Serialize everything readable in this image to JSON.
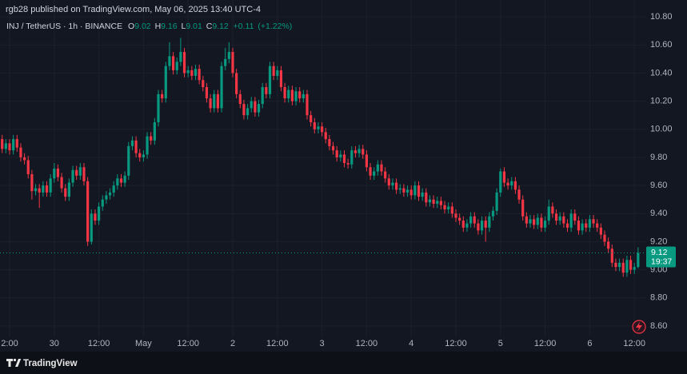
{
  "chart_data": {
    "type": "candlestick",
    "title": "rgb28 published on TradingView.com, May 06, 2025 13:40 UTC-4",
    "legend": {
      "symbol": "INJ / TetherUS · 1h · BINANCE",
      "letters": [
        "O",
        "H",
        "L",
        "C"
      ],
      "open": 9.02,
      "high": 9.16,
      "low": 9.01,
      "close": 9.12,
      "change": {
        "value": 0.11,
        "label": "+0.11"
      },
      "change_pct": {
        "value": 1.22,
        "label": "(+1.22%)"
      }
    },
    "brand": "TradingView",
    "up_color": "#089981",
    "down_color": "#f23645",
    "last_price": 9.12,
    "countdown": "19:37",
    "grid": true,
    "ylim": [
      8.52,
      10.92
    ],
    "yticks": [
      {
        "value": 8.6,
        "label": "8.60"
      },
      {
        "value": 8.8,
        "label": "8.80"
      },
      {
        "value": 9,
        "label": "9.00"
      },
      {
        "value": 9.2,
        "label": "9.20"
      },
      {
        "value": 9.4,
        "label": "9.40"
      },
      {
        "value": 9.6,
        "label": "9.60"
      },
      {
        "value": 9.8,
        "label": "9.80"
      },
      {
        "value": 10,
        "label": "10.00"
      },
      {
        "value": 10.2,
        "label": "10.20"
      },
      {
        "value": 10.4,
        "label": "10.40"
      },
      {
        "value": 10.6,
        "label": "10.60"
      },
      {
        "value": 10.8,
        "label": "10.80"
      }
    ],
    "categories": [
      null,
      null,
      "2:00",
      null,
      null,
      null,
      null,
      null,
      null,
      null,
      null,
      null,
      null,
      null,
      "30",
      null,
      null,
      null,
      null,
      null,
      null,
      null,
      null,
      null,
      null,
      null,
      "12:00",
      null,
      null,
      null,
      null,
      null,
      null,
      null,
      null,
      null,
      null,
      null,
      "May",
      null,
      null,
      null,
      null,
      null,
      null,
      null,
      null,
      null,
      null,
      null,
      "12:00",
      null,
      null,
      null,
      null,
      null,
      null,
      null,
      null,
      null,
      null,
      null,
      "2",
      null,
      null,
      null,
      null,
      null,
      null,
      null,
      null,
      null,
      null,
      null,
      "12:00",
      null,
      null,
      null,
      null,
      null,
      null,
      null,
      null,
      null,
      null,
      null,
      "3",
      null,
      null,
      null,
      null,
      null,
      null,
      null,
      null,
      null,
      null,
      null,
      "12:00",
      null,
      null,
      null,
      null,
      null,
      null,
      null,
      null,
      null,
      null,
      null,
      "4",
      null,
      null,
      null,
      null,
      null,
      null,
      null,
      null,
      null,
      null,
      null,
      "12:00",
      null,
      null,
      null,
      null,
      null,
      null,
      null,
      null,
      null,
      null,
      null,
      "5",
      null,
      null,
      null,
      null,
      null,
      null,
      null,
      null,
      null,
      null,
      null,
      "12:00",
      null,
      null,
      null,
      null,
      null,
      null,
      null,
      null,
      null,
      null,
      null,
      "6",
      null,
      null,
      null,
      null,
      null,
      null,
      null,
      null,
      null,
      null,
      null,
      "12:00",
      null
    ],
    "open": [
      9.93,
      9.86,
      9.9,
      9.85,
      9.93,
      9.87,
      9.8,
      9.78,
      9.68,
      9.56,
      9.58,
      9.55,
      9.6,
      9.55,
      9.65,
      9.72,
      9.66,
      9.58,
      9.52,
      9.62,
      9.71,
      9.67,
      9.73,
      9.63,
      9.2,
      9.4,
      9.35,
      9.45,
      9.5,
      9.53,
      9.55,
      9.6,
      9.65,
      9.62,
      9.67,
      9.88,
      9.92,
      9.83,
      9.8,
      9.82,
      9.95,
      9.92,
      10.05,
      10.25,
      10.22,
      10.45,
      10.52,
      10.42,
      10.48,
      10.55,
      10.4,
      10.42,
      10.38,
      10.43,
      10.35,
      10.3,
      10.22,
      10.15,
      10.25,
      10.15,
      10.45,
      10.5,
      10.55,
      10.4,
      10.25,
      10.18,
      10.1,
      10.15,
      10.2,
      10.12,
      10.18,
      10.3,
      10.25,
      10.45,
      10.38,
      10.42,
      10.3,
      10.22,
      10.28,
      10.2,
      10.27,
      10.22,
      10.25,
      10.1,
      10.05,
      10.0,
      10.02,
      9.98,
      9.93,
      9.88,
      9.85,
      9.8,
      9.82,
      9.76,
      9.75,
      9.85,
      9.83,
      9.86,
      9.82,
      9.73,
      9.67,
      9.7,
      9.75,
      9.7,
      9.65,
      9.6,
      9.62,
      9.57,
      9.58,
      9.55,
      9.57,
      9.53,
      9.6,
      9.52,
      9.55,
      9.48,
      9.5,
      9.47,
      9.49,
      9.46,
      9.43,
      9.45,
      9.4,
      9.37,
      9.35,
      9.3,
      9.33,
      9.38,
      9.33,
      9.28,
      9.35,
      9.3,
      9.38,
      9.42,
      9.55,
      9.7,
      9.62,
      9.6,
      9.63,
      9.57,
      9.5,
      9.38,
      9.33,
      9.36,
      9.32,
      9.37,
      9.3,
      9.35,
      9.45,
      9.4,
      9.35,
      9.38,
      9.33,
      9.3,
      9.4,
      9.35,
      9.28,
      9.33,
      9.3,
      9.36,
      9.33,
      9.3,
      9.25,
      9.2,
      9.15,
      9.05,
      9.02,
      9.05,
      8.98,
      9.07,
      9.0,
      9.02
    ],
    "high": [
      9.96,
      9.93,
      9.93,
      9.96,
      9.96,
      9.9,
      9.83,
      9.81,
      9.71,
      9.61,
      9.61,
      9.63,
      9.63,
      9.68,
      9.76,
      9.75,
      9.69,
      9.61,
      9.65,
      9.74,
      9.74,
      9.76,
      9.76,
      9.66,
      9.43,
      9.43,
      9.48,
      9.53,
      9.56,
      9.58,
      9.63,
      9.68,
      9.68,
      9.7,
      9.91,
      9.95,
      9.95,
      9.86,
      9.85,
      9.98,
      9.98,
      10.08,
      10.28,
      10.28,
      10.48,
      10.62,
      10.55,
      10.51,
      10.65,
      10.58,
      10.45,
      10.45,
      10.46,
      10.46,
      10.38,
      10.33,
      10.25,
      10.28,
      10.28,
      10.48,
      10.58,
      10.62,
      10.58,
      10.43,
      10.28,
      10.21,
      10.18,
      10.23,
      10.23,
      10.21,
      10.33,
      10.33,
      10.48,
      10.48,
      10.45,
      10.45,
      10.33,
      10.31,
      10.31,
      10.3,
      10.3,
      10.28,
      10.28,
      10.13,
      10.08,
      10.05,
      10.05,
      10.01,
      9.96,
      9.91,
      9.88,
      9.85,
      9.85,
      9.79,
      9.88,
      9.88,
      9.89,
      9.89,
      9.85,
      9.76,
      9.73,
      9.78,
      9.78,
      9.73,
      9.68,
      9.65,
      9.65,
      9.61,
      9.61,
      9.6,
      9.6,
      9.63,
      9.63,
      9.58,
      9.58,
      9.53,
      9.53,
      9.52,
      9.52,
      9.49,
      9.48,
      9.48,
      9.43,
      9.4,
      9.38,
      9.36,
      9.41,
      9.41,
      9.36,
      9.38,
      9.38,
      9.41,
      9.45,
      9.58,
      9.72,
      9.73,
      9.65,
      9.66,
      9.66,
      9.6,
      9.53,
      9.41,
      9.39,
      9.39,
      9.4,
      9.4,
      9.38,
      9.5,
      9.48,
      9.43,
      9.41,
      9.41,
      9.36,
      9.43,
      9.43,
      9.38,
      9.36,
      9.36,
      9.39,
      9.39,
      9.36,
      9.33,
      9.28,
      9.23,
      9.18,
      9.08,
      9.08,
      9.08,
      9.1,
      9.1,
      9.05,
      9.16
    ],
    "low": [
      9.83,
      9.83,
      9.82,
      9.82,
      9.84,
      9.77,
      9.75,
      9.65,
      9.5,
      9.53,
      9.44,
      9.52,
      9.52,
      9.52,
      9.62,
      9.63,
      9.55,
      9.49,
      9.49,
      9.59,
      9.64,
      9.64,
      9.6,
      9.17,
      9.18,
      9.32,
      9.32,
      9.42,
      9.47,
      9.5,
      9.52,
      9.57,
      9.59,
      9.59,
      9.64,
      9.85,
      9.8,
      9.77,
      9.77,
      9.79,
      9.89,
      9.89,
      10.02,
      10.19,
      10.19,
      10.42,
      10.39,
      10.39,
      10.45,
      10.37,
      10.37,
      10.35,
      10.35,
      10.32,
      10.27,
      10.19,
      10.12,
      10.12,
      10.12,
      10.12,
      10.42,
      10.47,
      10.37,
      10.22,
      10.15,
      10.07,
      10.07,
      10.12,
      10.09,
      10.09,
      10.15,
      10.22,
      10.22,
      10.35,
      10.35,
      10.27,
      10.19,
      10.19,
      10.17,
      10.17,
      10.19,
      10.19,
      10.07,
      10.02,
      9.97,
      9.97,
      9.95,
      9.9,
      9.85,
      9.82,
      9.77,
      9.77,
      9.73,
      9.72,
      9.72,
      9.8,
      9.8,
      9.79,
      9.7,
      9.64,
      9.64,
      9.67,
      9.67,
      9.62,
      9.57,
      9.57,
      9.54,
      9.54,
      9.52,
      9.52,
      9.5,
      9.5,
      9.49,
      9.49,
      9.45,
      9.45,
      9.44,
      9.44,
      9.43,
      9.4,
      9.4,
      9.37,
      9.34,
      9.32,
      9.27,
      9.27,
      9.3,
      9.3,
      9.25,
      9.25,
      9.2,
      9.27,
      9.35,
      9.39,
      9.52,
      9.59,
      9.57,
      9.57,
      9.54,
      9.47,
      9.35,
      9.3,
      9.3,
      9.29,
      9.29,
      9.27,
      9.27,
      9.32,
      9.37,
      9.32,
      9.32,
      9.3,
      9.27,
      9.27,
      9.32,
      9.25,
      9.25,
      9.27,
      9.27,
      9.3,
      9.27,
      9.22,
      9.17,
      9.12,
      9.02,
      8.99,
      8.99,
      8.95,
      8.95,
      8.97,
      8.97,
      9.01
    ],
    "close": [
      9.86,
      9.9,
      9.85,
      9.93,
      9.87,
      9.8,
      9.78,
      9.68,
      9.56,
      9.58,
      9.55,
      9.6,
      9.55,
      9.65,
      9.72,
      9.66,
      9.58,
      9.52,
      9.62,
      9.71,
      9.67,
      9.73,
      9.63,
      9.2,
      9.4,
      9.35,
      9.45,
      9.5,
      9.53,
      9.55,
      9.6,
      9.65,
      9.62,
      9.67,
      9.88,
      9.92,
      9.83,
      9.8,
      9.82,
      9.95,
      9.92,
      10.05,
      10.25,
      10.22,
      10.45,
      10.52,
      10.42,
      10.48,
      10.55,
      10.4,
      10.42,
      10.38,
      10.43,
      10.35,
      10.3,
      10.22,
      10.15,
      10.25,
      10.15,
      10.45,
      10.5,
      10.55,
      10.4,
      10.25,
      10.18,
      10.1,
      10.15,
      10.2,
      10.12,
      10.18,
      10.3,
      10.25,
      10.45,
      10.38,
      10.42,
      10.3,
      10.22,
      10.28,
      10.2,
      10.27,
      10.22,
      10.25,
      10.1,
      10.05,
      10.0,
      10.02,
      9.98,
      9.93,
      9.88,
      9.85,
      9.8,
      9.82,
      9.76,
      9.75,
      9.85,
      9.83,
      9.86,
      9.82,
      9.73,
      9.67,
      9.7,
      9.75,
      9.7,
      9.65,
      9.6,
      9.62,
      9.57,
      9.58,
      9.55,
      9.57,
      9.53,
      9.6,
      9.52,
      9.55,
      9.48,
      9.5,
      9.47,
      9.49,
      9.46,
      9.43,
      9.45,
      9.4,
      9.37,
      9.35,
      9.3,
      9.33,
      9.38,
      9.33,
      9.28,
      9.35,
      9.3,
      9.38,
      9.42,
      9.55,
      9.7,
      9.62,
      9.6,
      9.63,
      9.57,
      9.5,
      9.38,
      9.33,
      9.36,
      9.32,
      9.37,
      9.3,
      9.35,
      9.45,
      9.4,
      9.35,
      9.38,
      9.33,
      9.3,
      9.4,
      9.35,
      9.28,
      9.33,
      9.3,
      9.36,
      9.33,
      9.3,
      9.25,
      9.2,
      9.15,
      9.05,
      9.02,
      9.05,
      8.98,
      9.07,
      9.0,
      9.02,
      9.12
    ]
  }
}
